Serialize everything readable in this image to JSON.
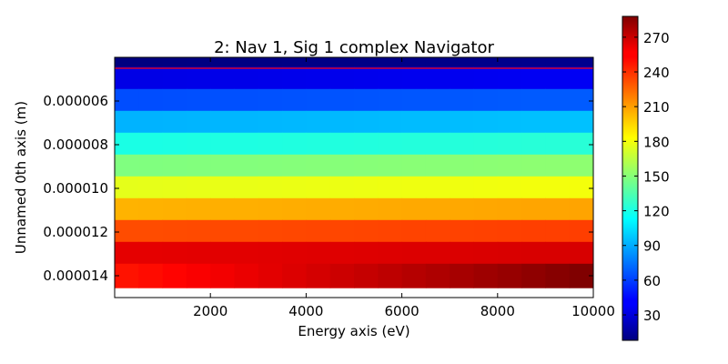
{
  "chart_data": {
    "type": "heatmap",
    "title": "2: Nav 1, Sig 1 complex Navigator",
    "xlabel": "Energy axis (eV)",
    "ylabel": "Unnamed 0th axis (m)",
    "x_range": [
      0,
      10000
    ],
    "y_range": [
      4e-06,
      1.5e-05
    ],
    "x_ticks": [
      2000,
      4000,
      6000,
      8000,
      10000
    ],
    "x_tick_labels": [
      "2000",
      "4000",
      "6000",
      "8000",
      "10000"
    ],
    "y_ticks": [
      6e-06,
      8e-06,
      1e-05,
      1.2e-05,
      1.4e-05
    ],
    "y_tick_labels": [
      "0.000006",
      "0.000008",
      "0.000010",
      "0.000012",
      "0.000014"
    ],
    "colorscale": "jet",
    "colorbar_range": [
      8,
      288
    ],
    "colorbar_ticks": [
      30,
      60,
      90,
      120,
      150,
      180,
      210,
      240,
      270
    ],
    "colorbar_tick_labels": [
      "30",
      "60",
      "90",
      "120",
      "150",
      "180",
      "210",
      "240",
      "270"
    ],
    "marker_line": {
      "y": 4.5e-06,
      "color": "#ff0000"
    },
    "cols": 20,
    "row_centers": [
      4e-06,
      5e-06,
      6e-06,
      7e-06,
      8e-06,
      9e-06,
      1e-05,
      1.1e-05,
      1.2e-05,
      1.3e-05,
      1.4e-05
    ],
    "row_start_values": [
      8,
      36,
      64,
      92,
      120,
      148,
      176,
      204,
      232,
      260,
      248
    ],
    "row_end_values": [
      12,
      40,
      68,
      96,
      124,
      152,
      180,
      208,
      236,
      264,
      288
    ],
    "grid": false
  }
}
